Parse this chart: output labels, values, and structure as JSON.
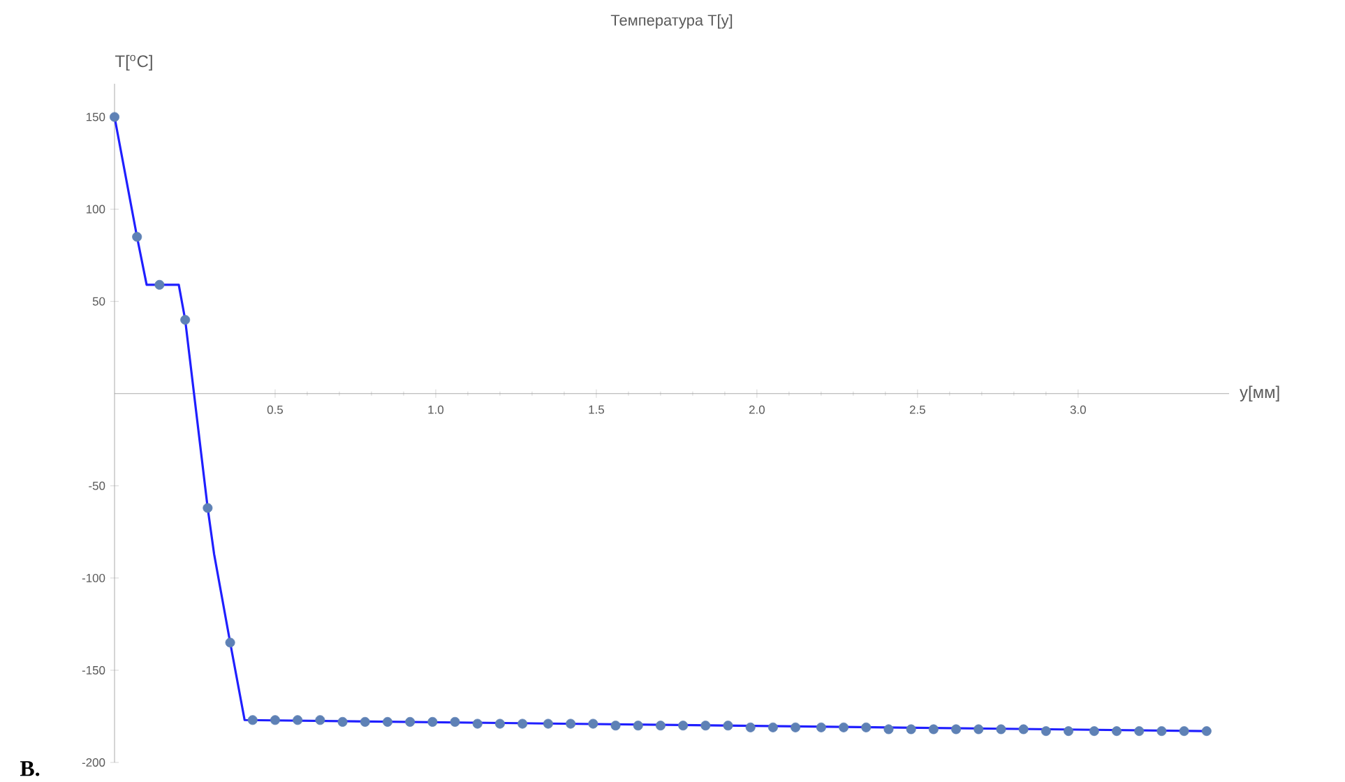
{
  "chart_data": {
    "type": "line",
    "title": "Температура T[y]",
    "xlabel": "y[мм]",
    "ylabel": "T[$^{o}$C]",
    "annotations": [
      "В."
    ],
    "xlim": [
      0,
      3.47
    ],
    "ylim": [
      -200,
      168
    ],
    "xticks": [
      0.5,
      {
        "value": 1,
        "label": "1.0"
      },
      1.5,
      {
        "value": 2,
        "label": "2.0"
      },
      2.5,
      {
        "value": 3,
        "label": "3.0"
      }
    ],
    "yticks": [
      -200,
      -150,
      -100,
      -50,
      50,
      100,
      150
    ],
    "series": [
      {
        "color": "#1f1fff",
        "marker": "none",
        "x": [
          0,
          0.07,
          0.1,
          0.2,
          0.22,
          0.29,
          0.31,
          0.36,
          0.405,
          3.4
        ],
        "values": [
          150,
          85,
          59,
          59,
          40,
          -62,
          -87,
          -135,
          -177,
          -183
        ]
      },
      {
        "type": "scatter",
        "color": "#5e81b5",
        "marker": "circle",
        "x": [
          0,
          0.07,
          0.14,
          0.22,
          0.29,
          0.36,
          0.43,
          0.5,
          0.57,
          0.64,
          0.71,
          0.78,
          0.85,
          0.92,
          0.99,
          1.06,
          1.13,
          1.2,
          1.27,
          1.35,
          1.42,
          1.49,
          1.56,
          1.63,
          1.7,
          1.77,
          1.84,
          1.91,
          1.98,
          2.05,
          2.12,
          2.2,
          2.27,
          2.34,
          2.41,
          2.48,
          2.55,
          2.62,
          2.69,
          2.76,
          2.83,
          2.9,
          2.97,
          3.05,
          3.12,
          3.19,
          3.26,
          3.33,
          3.4
        ],
        "values": [
          150,
          85,
          59,
          40,
          -62,
          -135,
          -177,
          -177,
          -177,
          -177,
          -178,
          -178,
          -178,
          -178,
          -178,
          -178,
          -179,
          -179,
          -179,
          -179,
          -179,
          -179,
          -180,
          -180,
          -180,
          -180,
          -180,
          -180,
          -181,
          -181,
          -181,
          -181,
          -181,
          -181,
          -182,
          -182,
          -182,
          -182,
          -182,
          -182,
          -182,
          -183,
          -183,
          -183,
          -183,
          -183,
          -183,
          -183,
          -183
        ]
      }
    ]
  }
}
